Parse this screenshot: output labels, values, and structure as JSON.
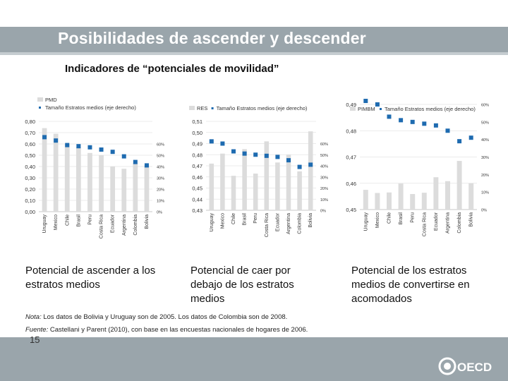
{
  "slide": {
    "title": "Posibilidades de ascender y descender",
    "subtitle": "Indicadores de “potenciales de movilidad”",
    "page_number": "15",
    "note_label": "Nota:",
    "note_text": " Los datos de Bolivia y Uruguay son de 2005. Los datos de Colombia son de 2008.",
    "source_label": "Fuente:",
    "source_text": " Castellani y Parent (2010), con base en las encuestas nacionales de hogares de 2006.",
    "logo_text": "OECD"
  },
  "colors": {
    "bar": "#dcdcdc",
    "marker": "#1e6bb0",
    "grid": "#e4e4e4",
    "title_bar": "#9aa5ab"
  },
  "chart_data": [
    {
      "type": "bar",
      "name": "PMD",
      "legend": [
        "PMD",
        "Tamaño Estratos medios (eje derecho)"
      ],
      "caption": "Potencial de ascender a los estratos medios",
      "categories": [
        "Uruguay",
        "Mexico",
        "Chile",
        "Brasil",
        "Peru",
        "Costa Rica",
        "Ecuador",
        "Argentina",
        "Colombia",
        "Bolivia"
      ],
      "values": [
        0.74,
        0.69,
        0.6,
        0.57,
        0.52,
        0.5,
        0.4,
        0.38,
        0.43,
        0.41
      ],
      "secondary_values": [
        0.66,
        0.63,
        0.59,
        0.58,
        0.57,
        0.55,
        0.53,
        0.49,
        0.44,
        0.41
      ],
      "ylim": [
        0,
        0.8
      ],
      "yticks": [
        "0,00",
        "0,10",
        "0,20",
        "0,30",
        "0,40",
        "0,50",
        "0,60",
        "0,70",
        "0,80"
      ],
      "y2lim": [
        0,
        0.8
      ],
      "y2ticks": [
        "0%",
        "10%",
        "20%",
        "30%",
        "40%",
        "50%",
        "60%"
      ]
    },
    {
      "type": "bar",
      "name": "RES",
      "legend": [
        "RES",
        "Tamaño Estratos medios (eje derecho)"
      ],
      "caption": "Potencial de caer por debajo de los estratos medios",
      "categories": [
        "Uruguay",
        "Mexico",
        "Chile",
        "Brasil",
        "Peru",
        "Costa Rica",
        "Ecuador",
        "Argentina",
        "Colombia",
        "Bolivia"
      ],
      "values": [
        0.472,
        0.481,
        0.461,
        0.485,
        0.463,
        0.492,
        0.473,
        0.48,
        0.465,
        0.501
      ],
      "secondary_values": [
        0.62,
        0.6,
        0.53,
        0.51,
        0.5,
        0.49,
        0.48,
        0.45,
        0.39,
        0.41
      ],
      "ylim": [
        0.43,
        0.51
      ],
      "yticks": [
        "0,43",
        "0,44",
        "0,45",
        "0,46",
        "0,47",
        "0,48",
        "0,49",
        "0,50",
        "0,51"
      ],
      "y2lim": [
        0,
        0.8
      ],
      "y2ticks": [
        "0%",
        "10%",
        "20%",
        "30%",
        "40%",
        "50%",
        "60%"
      ]
    },
    {
      "type": "bar",
      "name": "PIMBM",
      "legend": [
        "PIMBM",
        "Tamaño Estratos medios (eje derecho)"
      ],
      "caption": "Potencial de los estratos medios de convertirse en acomodados",
      "categories": [
        "Uruguay",
        "Mexico",
        "Chile",
        "Brasil",
        "Peru",
        "Costa Rica",
        "Ecuador",
        "Argentina",
        "Colombia",
        "Bolivia"
      ],
      "values": [
        0.4575,
        0.4563,
        0.4565,
        0.4599,
        0.4559,
        0.4564,
        0.4623,
        0.4608,
        0.4685,
        0.46
      ],
      "secondary_values": [
        0.62,
        0.6,
        0.53,
        0.51,
        0.5,
        0.49,
        0.48,
        0.45,
        0.39,
        0.41
      ],
      "ylim": [
        0.45,
        0.49
      ],
      "yticks": [
        "0,45",
        "0,46",
        "0,47",
        "0,48",
        "0,49"
      ],
      "y2lim": [
        0,
        0.6
      ],
      "y2ticks": [
        "0%",
        "10%",
        "20%",
        "30%",
        "40%",
        "50%",
        "60%"
      ]
    }
  ]
}
